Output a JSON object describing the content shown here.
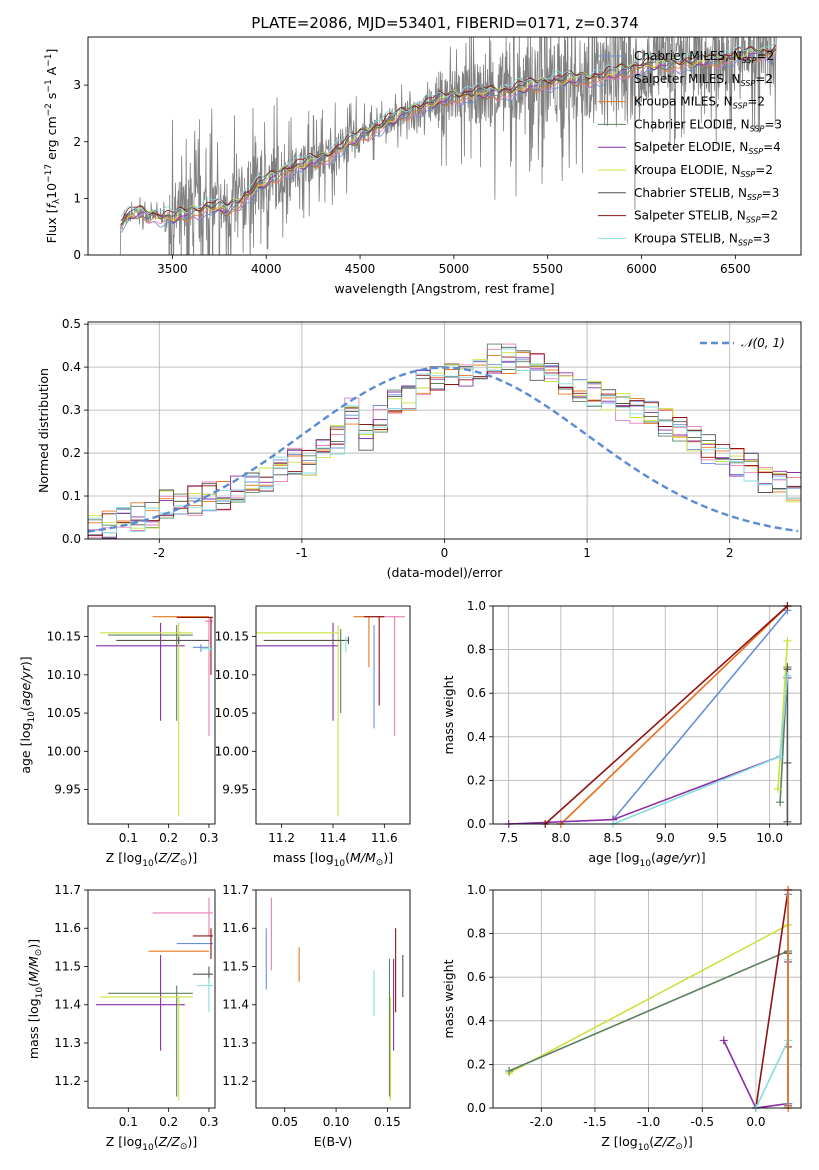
{
  "title": "PLATE=2086, MJD=53401, FIBERID=0171, z=0.374",
  "colors": {
    "chabrier_miles": "#6a8fd4",
    "salpeter_miles": "#e87fb8",
    "kroupa_miles": "#e6781f",
    "chabrier_elodie": "#5e8060",
    "salpeter_elodie": "#8b2fa8",
    "kroupa_elodie": "#cbe23e",
    "chabrier_stelib": "#555555",
    "salpeter_stelib": "#8f1414",
    "kroupa_stelib": "#86dce0",
    "data": "#808080"
  },
  "chart_data": [
    {
      "id": "spectrum",
      "type": "line",
      "xlabel": "wavelength [Angstrom, rest frame]",
      "ylabel": "Flux [fλ10⁻¹⁷ erg cm⁻² s⁻¹ A⁻¹]",
      "xlim": [
        3050,
        6850
      ],
      "ylim": [
        0,
        3.85
      ],
      "xticks": [
        3500,
        4000,
        4500,
        5000,
        5500,
        6000,
        6500
      ],
      "yticks": [
        0,
        1,
        2,
        3
      ],
      "continuum_points": [
        [
          3220,
          0.55
        ],
        [
          3300,
          0.75
        ],
        [
          3500,
          0.65
        ],
        [
          3700,
          0.85
        ],
        [
          3800,
          0.8
        ],
        [
          3950,
          1.2
        ],
        [
          4100,
          1.5
        ],
        [
          4300,
          1.7
        ],
        [
          4500,
          2.1
        ],
        [
          4800,
          2.6
        ],
        [
          5000,
          2.8
        ],
        [
          5300,
          2.9
        ],
        [
          5500,
          3.05
        ],
        [
          5800,
          3.15
        ],
        [
          6000,
          3.35
        ],
        [
          6300,
          3.4
        ],
        [
          6500,
          3.5
        ],
        [
          6700,
          3.6
        ]
      ],
      "legend": [
        {
          "name": "Chabrier MILES, N",
          "sub": "SSP",
          "suffix": "=2",
          "color": "chabrier_miles"
        },
        {
          "name": "Salpeter MILES, N",
          "sub": "SSP",
          "suffix": "=2",
          "color": "salpeter_miles"
        },
        {
          "name": "Kroupa MILES, N",
          "sub": "SSP",
          "suffix": "=2",
          "color": "kroupa_miles"
        },
        {
          "name": "Chabrier ELODIE, N",
          "sub": "SSP",
          "suffix": "=3",
          "color": "chabrier_elodie"
        },
        {
          "name": "Salpeter ELODIE, N",
          "sub": "SSP",
          "suffix": "=4",
          "color": "salpeter_elodie"
        },
        {
          "name": "Kroupa ELODIE, N",
          "sub": "SSP",
          "suffix": "=2",
          "color": "kroupa_elodie"
        },
        {
          "name": "Chabrier STELIB, N",
          "sub": "SSP",
          "suffix": "=3",
          "color": "chabrier_stelib"
        },
        {
          "name": "Salpeter STELIB, N",
          "sub": "SSP",
          "suffix": "=2",
          "color": "salpeter_stelib"
        },
        {
          "name": "Kroupa STELIB, N",
          "sub": "SSP",
          "suffix": "=3",
          "color": "kroupa_stelib"
        }
      ]
    },
    {
      "id": "residuals",
      "type": "line",
      "xlabel": "(data-model)/error",
      "ylabel": "Normed distribution",
      "xlim": [
        -2.5,
        2.5
      ],
      "ylim": [
        0,
        0.505
      ],
      "xticks": [
        -2,
        -1,
        0,
        1,
        2
      ],
      "yticks": [
        0.0,
        0.1,
        0.2,
        0.3,
        0.4,
        0.5
      ],
      "grid": true,
      "legend_label": "𝒩(0, 1)",
      "legend_position": "top-right",
      "hist_bin_width": 0.1,
      "hist_centers_start": -2.45,
      "hist_mean": [
        0.02,
        0.03,
        0.04,
        0.05,
        0.06,
        0.08,
        0.08,
        0.09,
        0.1,
        0.1,
        0.12,
        0.12,
        0.14,
        0.16,
        0.18,
        0.18,
        0.2,
        0.23,
        0.3,
        0.24,
        0.28,
        0.32,
        0.33,
        0.36,
        0.37,
        0.38,
        0.39,
        0.4,
        0.42,
        0.42,
        0.41,
        0.4,
        0.39,
        0.36,
        0.35,
        0.34,
        0.32,
        0.31,
        0.3,
        0.29,
        0.27,
        0.25,
        0.23,
        0.21,
        0.2,
        0.18,
        0.17,
        0.14,
        0.13,
        0.12,
        0.11,
        0.09,
        0.1,
        0.09,
        0.07,
        0.06,
        0.05,
        0.04,
        0.04,
        0.03
      ]
    },
    {
      "id": "age_vs_Z",
      "type": "scatter",
      "xlabel": "Z [log10(Z/Z⊙)]",
      "ylabel": "age  [log10(age/yr)]",
      "xlim": [
        0.0,
        0.315
      ],
      "ylim": [
        9.905,
        10.19
      ],
      "xticks": [
        0.1,
        0.2,
        0.3
      ],
      "yticks": [
        9.95,
        10.0,
        10.05,
        10.1,
        10.15
      ],
      "points": [
        {
          "color": "chabrier_miles",
          "x": 0.28,
          "y": 10.136,
          "xerr": [
            0.26,
            0.3
          ],
          "yerr": [
            10.13,
            10.14
          ]
        },
        {
          "color": "salpeter_miles",
          "x": 0.3,
          "y": 10.17,
          "xerr": [
            0.29,
            0.31
          ],
          "yerr": [
            10.02,
            10.175
          ]
        },
        {
          "color": "kroupa_miles",
          "x": 0.23,
          "y": 10.176,
          "xerr": [
            0.16,
            0.3
          ],
          "yerr": [
            10.176,
            10.176
          ]
        },
        {
          "color": "chabrier_elodie",
          "x": 0.22,
          "y": 10.152,
          "xerr": [
            0.05,
            0.26
          ],
          "yerr": [
            10.04,
            10.165
          ]
        },
        {
          "color": "salpeter_elodie",
          "x": 0.18,
          "y": 10.138,
          "xerr": [
            0.02,
            0.24
          ],
          "yerr": [
            10.04,
            10.168
          ]
        },
        {
          "color": "kroupa_elodie",
          "x": 0.225,
          "y": 10.155,
          "xerr": [
            0.03,
            0.26
          ],
          "yerr": [
            9.915,
            10.168
          ]
        },
        {
          "color": "chabrier_stelib",
          "x": 0.225,
          "y": 10.145,
          "xerr": [
            0.07,
            0.3
          ],
          "yerr": [
            10.14,
            10.15
          ]
        },
        {
          "color": "salpeter_stelib",
          "x": 0.305,
          "y": 10.175,
          "xerr": [
            0.22,
            0.31
          ],
          "yerr": [
            10.1,
            10.176
          ]
        },
        {
          "color": "kroupa_stelib",
          "x": 0.3,
          "y": 10.134,
          "xerr": [
            0.28,
            0.31
          ],
          "yerr": [
            10.13,
            10.14
          ]
        }
      ]
    },
    {
      "id": "age_vs_mass",
      "type": "scatter",
      "xlabel": "mass [log10(M/M⊙)]",
      "ylabel": "",
      "xlim": [
        11.1,
        11.7
      ],
      "ylim": [
        9.905,
        10.19
      ],
      "xticks": [
        11.2,
        11.4,
        11.6
      ],
      "yticks": [
        9.95,
        10.0,
        10.05,
        10.1,
        10.15
      ],
      "points": [
        {
          "color": "chabrier_miles",
          "x": 11.56,
          "y": 10.136,
          "xerr": [
            11.56,
            11.56
          ],
          "yerr": [
            10.03,
            10.165
          ]
        },
        {
          "color": "salpeter_miles",
          "x": 11.64,
          "y": 10.176,
          "xerr": [
            11.57,
            11.68
          ],
          "yerr": [
            10.02,
            10.176
          ]
        },
        {
          "color": "kroupa_miles",
          "x": 11.54,
          "y": 10.176,
          "xerr": [
            11.48,
            11.6
          ],
          "yerr": [
            10.11,
            10.176
          ]
        },
        {
          "color": "chabrier_elodie",
          "x": 11.43,
          "y": 10.15,
          "xerr": [
            11.43,
            11.43
          ],
          "yerr": [
            10.05,
            10.16
          ]
        },
        {
          "color": "salpeter_elodie",
          "x": 11.4,
          "y": 10.138,
          "xerr": [
            11.1,
            11.42
          ],
          "yerr": [
            10.04,
            10.168
          ]
        },
        {
          "color": "kroupa_elodie",
          "x": 11.42,
          "y": 10.155,
          "xerr": [
            11.1,
            11.42
          ],
          "yerr": [
            9.915,
            10.165
          ]
        },
        {
          "color": "chabrier_stelib",
          "x": 11.46,
          "y": 10.145,
          "xerr": [
            11.13,
            11.46
          ],
          "yerr": [
            10.14,
            10.15
          ]
        },
        {
          "color": "salpeter_stelib",
          "x": 11.58,
          "y": 10.176,
          "xerr": [
            11.52,
            11.6
          ],
          "yerr": [
            10.06,
            10.176
          ]
        },
        {
          "color": "kroupa_stelib",
          "x": 11.45,
          "y": 10.14,
          "xerr": [
            11.45,
            11.45
          ],
          "yerr": [
            10.13,
            10.15
          ]
        }
      ]
    },
    {
      "id": "weight_vs_age",
      "type": "line",
      "xlabel": "age  [log10(age/yr)]",
      "ylabel": "mass weight",
      "xlim": [
        7.35,
        10.3
      ],
      "ylim": [
        0.0,
        1.0
      ],
      "xticks": [
        7.5,
        8.0,
        8.5,
        9.0,
        9.5,
        10.0
      ],
      "yticks": [
        0.0,
        0.2,
        0.4,
        0.6,
        0.8,
        1.0
      ],
      "grid": true,
      "series": [
        {
          "color": "chabrier_miles",
          "x": [
            8.5,
            10.17
          ],
          "y": [
            0.02,
            0.98
          ]
        },
        {
          "color": "salpeter_miles",
          "x": [
            8.0,
            10.17
          ],
          "y": [
            0.0,
            1.0
          ]
        },
        {
          "color": "kroupa_miles",
          "x": [
            8.0,
            10.17
          ],
          "y": [
            0.0,
            1.0
          ]
        },
        {
          "color": "chabrier_elodie",
          "x": [
            10.1,
            10.17,
            10.17
          ],
          "y": [
            0.1,
            0.72,
            0.72
          ]
        },
        {
          "color": "salpeter_elodie",
          "x": [
            7.5,
            8.5,
            10.1,
            10.17
          ],
          "y": [
            0.0,
            0.02,
            0.31,
            0.67
          ]
        },
        {
          "color": "kroupa_elodie",
          "x": [
            10.08,
            10.17
          ],
          "y": [
            0.16,
            0.84
          ]
        },
        {
          "color": "chabrier_stelib",
          "x": [
            10.17,
            10.17,
            10.17
          ],
          "y": [
            0.01,
            0.28,
            0.71
          ]
        },
        {
          "color": "salpeter_stelib",
          "x": [
            7.85,
            10.17
          ],
          "y": [
            0.0,
            1.0
          ]
        },
        {
          "color": "kroupa_stelib",
          "x": [
            8.5,
            10.1,
            10.17
          ],
          "y": [
            0.0,
            0.31,
            0.68
          ]
        }
      ]
    },
    {
      "id": "mass_vs_Z",
      "type": "scatter",
      "xlabel": "Z [log10(Z/Z⊙)]",
      "ylabel": "mass [log10(M/M⊙)]",
      "xlim": [
        0.0,
        0.315
      ],
      "ylim": [
        11.13,
        11.7
      ],
      "xticks": [
        0.1,
        0.2,
        0.3
      ],
      "yticks": [
        11.2,
        11.3,
        11.4,
        11.5,
        11.6,
        11.7
      ],
      "points": [
        {
          "color": "chabrier_miles",
          "x": 0.28,
          "y": 11.56,
          "xerr": [
            0.22,
            0.31
          ],
          "yerr": [
            11.56,
            11.56
          ]
        },
        {
          "color": "salpeter_miles",
          "x": 0.3,
          "y": 11.64,
          "xerr": [
            0.16,
            0.31
          ],
          "yerr": [
            11.58,
            11.68
          ]
        },
        {
          "color": "kroupa_miles",
          "x": 0.23,
          "y": 11.54,
          "xerr": [
            0.15,
            0.3
          ],
          "yerr": [
            11.54,
            11.54
          ]
        },
        {
          "color": "chabrier_elodie",
          "x": 0.22,
          "y": 11.43,
          "xerr": [
            0.05,
            0.26
          ],
          "yerr": [
            11.16,
            11.45
          ]
        },
        {
          "color": "salpeter_elodie",
          "x": 0.18,
          "y": 11.4,
          "xerr": [
            0.02,
            0.24
          ],
          "yerr": [
            11.28,
            11.53
          ]
        },
        {
          "color": "kroupa_elodie",
          "x": 0.225,
          "y": 11.42,
          "xerr": [
            0.03,
            0.26
          ],
          "yerr": [
            11.15,
            11.42
          ]
        },
        {
          "color": "chabrier_stelib",
          "x": 0.3,
          "y": 11.48,
          "xerr": [
            0.26,
            0.31
          ],
          "yerr": [
            11.46,
            11.5
          ]
        },
        {
          "color": "salpeter_stelib",
          "x": 0.305,
          "y": 11.58,
          "xerr": [
            0.26,
            0.31
          ],
          "yerr": [
            11.52,
            11.6
          ]
        },
        {
          "color": "kroupa_stelib",
          "x": 0.3,
          "y": 11.45,
          "xerr": [
            0.27,
            0.31
          ],
          "yerr": [
            11.38,
            11.47
          ]
        }
      ]
    },
    {
      "id": "mass_vs_ebv",
      "type": "scatter",
      "xlabel": "E(B-V)",
      "ylabel": "",
      "xlim": [
        0.022,
        0.172
      ],
      "ylim": [
        11.13,
        11.7
      ],
      "xticks": [
        0.05,
        0.1,
        0.15
      ],
      "yticks": [
        11.2,
        11.3,
        11.4,
        11.5,
        11.6,
        11.7
      ],
      "points": [
        {
          "color": "chabrier_miles",
          "x": 0.032,
          "y": 11.56,
          "yerr": [
            11.44,
            11.6
          ]
        },
        {
          "color": "salpeter_miles",
          "x": 0.037,
          "y": 11.64,
          "yerr": [
            11.49,
            11.68
          ]
        },
        {
          "color": "kroupa_miles",
          "x": 0.064,
          "y": 11.5,
          "yerr": [
            11.46,
            11.55
          ]
        },
        {
          "color": "chabrier_elodie",
          "x": 0.152,
          "y": 11.43,
          "yerr": [
            11.16,
            11.52
          ]
        },
        {
          "color": "salpeter_elodie",
          "x": 0.156,
          "y": 11.4,
          "yerr": [
            11.28,
            11.52
          ]
        },
        {
          "color": "kroupa_elodie",
          "x": 0.153,
          "y": 11.42,
          "yerr": [
            11.15,
            11.42
          ]
        },
        {
          "color": "chabrier_stelib",
          "x": 0.165,
          "y": 11.48,
          "yerr": [
            11.42,
            11.53
          ]
        },
        {
          "color": "salpeter_stelib",
          "x": 0.158,
          "y": 11.5,
          "yerr": [
            11.38,
            11.6
          ]
        },
        {
          "color": "kroupa_stelib",
          "x": 0.137,
          "y": 11.45,
          "yerr": [
            11.37,
            11.49
          ]
        }
      ]
    },
    {
      "id": "weight_vs_Z",
      "type": "line",
      "xlabel": "Z [log10(Z/Z⊙)]",
      "ylabel": "mass weight",
      "xlim": [
        -2.45,
        0.42
      ],
      "ylim": [
        0.0,
        1.0
      ],
      "xticks": [
        -2.0,
        -1.5,
        -1.0,
        -0.5,
        0.0
      ],
      "yticks": [
        0.0,
        0.2,
        0.4,
        0.6,
        0.8,
        1.0
      ],
      "grid": true,
      "series": [
        {
          "color": "kroupa_elodie",
          "x": [
            -2.3,
            0.3
          ],
          "y": [
            0.16,
            0.84
          ]
        },
        {
          "color": "chabrier_elodie",
          "x": [
            -2.3,
            0.3
          ],
          "y": [
            0.17,
            0.72
          ]
        },
        {
          "color": "salpeter_elodie",
          "x": [
            -0.3,
            0.0,
            0.3,
            0.3
          ],
          "y": [
            0.31,
            0.0,
            0.02,
            0.67
          ]
        },
        {
          "color": "chabrier_stelib",
          "x": [
            0.3,
            0.3,
            0.3
          ],
          "y": [
            0.01,
            0.28,
            0.71
          ]
        },
        {
          "color": "salpeter_stelib",
          "x": [
            0.0,
            0.3
          ],
          "y": [
            0.0,
            1.0
          ]
        },
        {
          "color": "kroupa_stelib",
          "x": [
            0.0,
            0.3,
            0.3
          ],
          "y": [
            0.0,
            0.31,
            0.68
          ]
        },
        {
          "color": "chabrier_miles",
          "x": [
            0.3,
            0.3
          ],
          "y": [
            0.02,
            0.98
          ]
        },
        {
          "color": "salpeter_miles",
          "x": [
            0.3,
            0.3
          ],
          "y": [
            0.0,
            1.0
          ]
        },
        {
          "color": "kroupa_miles",
          "x": [
            0.3,
            0.3
          ],
          "y": [
            0.0,
            1.0
          ]
        }
      ]
    }
  ]
}
